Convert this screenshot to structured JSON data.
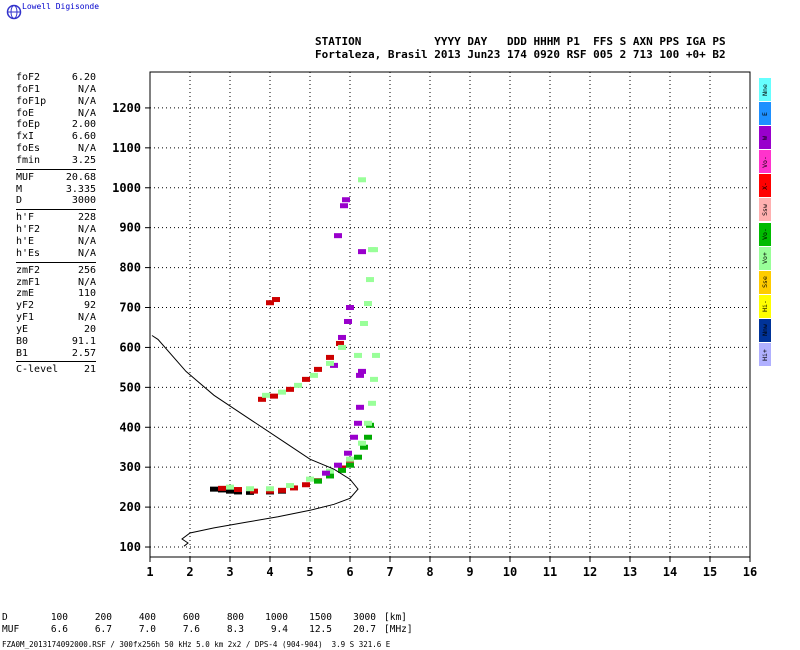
{
  "header": {
    "brand": "Lowell Digisonde",
    "row1": "STATION           YYYY DAY   DDD HHHM P1  FFS S AXN PPS IGA PS",
    "row2": "Fortaleza, Brasil 2013 Jun23 174 0920 RSF 005 2 713 100 +0+ B2"
  },
  "params_groups": [
    [
      {
        "label": "foF2",
        "value": "6.20"
      },
      {
        "label": "foF1",
        "value": "N/A"
      },
      {
        "label": "foF1p",
        "value": "N/A"
      },
      {
        "label": "foE",
        "value": "N/A"
      },
      {
        "label": "foEp",
        "value": "2.00"
      },
      {
        "label": "fxI",
        "value": "6.60"
      },
      {
        "label": "foEs",
        "value": "N/A"
      },
      {
        "label": "fmin",
        "value": "3.25"
      }
    ],
    [
      {
        "label": "MUF",
        "value": "20.68"
      },
      {
        "label": "M",
        "value": "3.335"
      },
      {
        "label": "D",
        "value": "3000"
      }
    ],
    [
      {
        "label": "h'F",
        "value": "228"
      },
      {
        "label": "h'F2",
        "value": "N/A"
      },
      {
        "label": "h'E",
        "value": "N/A"
      },
      {
        "label": "h'Es",
        "value": "N/A"
      }
    ],
    [
      {
        "label": "zmF2",
        "value": "256"
      },
      {
        "label": "zmF1",
        "value": "N/A"
      },
      {
        "label": "zmE",
        "value": "110"
      },
      {
        "label": "yF2",
        "value": "92"
      },
      {
        "label": "yF1",
        "value": "N/A"
      },
      {
        "label": "yE",
        "value": "20"
      },
      {
        "label": "B0",
        "value": "91.1"
      },
      {
        "label": "B1",
        "value": "2.57"
      }
    ],
    [
      {
        "label": "C-level",
        "value": "21"
      }
    ]
  ],
  "muf_table": {
    "row1": [
      "D",
      "100",
      "200",
      "400",
      "600",
      "800",
      "1000",
      "1500",
      "3000",
      "[km]"
    ],
    "row2": [
      "MUF",
      "6.6",
      "6.7",
      "7.0",
      "7.6",
      "8.3",
      "9.4",
      "12.5",
      "20.7",
      "[MHz]"
    ]
  },
  "footer": "FZA0M_2013174092000.RSF / 300fx256h 50 kHz 5.0 km 2x2 / DPS-4 (904-904)  3.9 S 321.6 E",
  "legend": [
    {
      "label": "Nne",
      "color": "#66ffff"
    },
    {
      "label": "E",
      "color": "#1e90ff"
    },
    {
      "label": "W",
      "color": "#9900cc"
    },
    {
      "label": "Vo-",
      "color": "#ff33cc"
    },
    {
      "label": "X-",
      "color": "#ff0000"
    },
    {
      "label": "Ssw",
      "color": "#ffb0b0"
    },
    {
      "label": "Vo-",
      "color": "#00bb00"
    },
    {
      "label": "Vo+",
      "color": "#99ff99"
    },
    {
      "label": "Sse",
      "color": "#ffcc00"
    },
    {
      "label": "Hi-",
      "color": "#ffff00"
    },
    {
      "label": "Nnw",
      "color": "#003399"
    },
    {
      "label": "Hi+",
      "color": "#b0b0ff"
    }
  ],
  "chart_data": {
    "type": "scatter",
    "xlabel": "",
    "ylabel": "",
    "xlim": [
      1,
      16
    ],
    "ylim": [
      75,
      1290
    ],
    "x_ticks": [
      1,
      2,
      3,
      4,
      5,
      6,
      7,
      8,
      9,
      10,
      11,
      12,
      13,
      14,
      15,
      16
    ],
    "y_ticks": [
      100,
      200,
      300,
      400,
      500,
      600,
      700,
      800,
      900,
      1000,
      1100,
      1200
    ],
    "grid": "dotted",
    "series": [
      {
        "color": "#000000",
        "points": [
          [
            2.6,
            245
          ],
          [
            2.8,
            243
          ],
          [
            3.0,
            240
          ],
          [
            3.2,
            238
          ],
          [
            3.5,
            237
          ],
          [
            4.0,
            238
          ],
          [
            4.3,
            240
          ]
        ]
      },
      {
        "color": "#cc0000",
        "points": [
          [
            2.8,
            247
          ],
          [
            3.2,
            244
          ],
          [
            3.6,
            240
          ],
          [
            4.0,
            240
          ],
          [
            4.3,
            242
          ],
          [
            4.6,
            248
          ],
          [
            4.9,
            256
          ],
          [
            5.2,
            266
          ],
          [
            5.5,
            280
          ],
          [
            5.8,
            298
          ],
          [
            6.0,
            318
          ]
        ]
      },
      {
        "color": "#00aa00",
        "points": [
          [
            5.2,
            265
          ],
          [
            5.5,
            278
          ],
          [
            5.8,
            292
          ],
          [
            6.0,
            305
          ],
          [
            6.2,
            325
          ],
          [
            6.35,
            350
          ],
          [
            6.45,
            375
          ],
          [
            6.5,
            405
          ]
        ]
      },
      {
        "color": "#99ff99",
        "points": [
          [
            3.0,
            250
          ],
          [
            3.5,
            246
          ],
          [
            4.0,
            246
          ],
          [
            4.5,
            254
          ],
          [
            5.0,
            270
          ],
          [
            5.5,
            290
          ],
          [
            6.0,
            320
          ],
          [
            6.3,
            360
          ],
          [
            6.45,
            410
          ],
          [
            6.55,
            460
          ],
          [
            6.6,
            520
          ],
          [
            6.65,
            580
          ],
          [
            6.2,
            580
          ],
          [
            6.35,
            660
          ],
          [
            6.45,
            710
          ],
          [
            6.5,
            770
          ],
          [
            6.55,
            845
          ],
          [
            6.6,
            845
          ]
        ]
      },
      {
        "color": "#9900cc",
        "points": [
          [
            5.4,
            285
          ],
          [
            5.7,
            305
          ],
          [
            5.95,
            335
          ],
          [
            6.1,
            375
          ],
          [
            6.2,
            410
          ],
          [
            6.25,
            450
          ],
          [
            6.25,
            530
          ],
          [
            6.3,
            540
          ],
          [
            5.6,
            555
          ],
          [
            5.8,
            625
          ],
          [
            5.95,
            665
          ],
          [
            6.0,
            700
          ],
          [
            5.7,
            880
          ],
          [
            5.85,
            955
          ],
          [
            5.9,
            970
          ],
          [
            6.3,
            840
          ]
        ]
      },
      {
        "color": "#cc0000",
        "points": [
          [
            3.8,
            470
          ],
          [
            4.1,
            478
          ],
          [
            4.5,
            495
          ],
          [
            4.9,
            520
          ],
          [
            5.2,
            545
          ],
          [
            5.5,
            575
          ],
          [
            5.75,
            610
          ],
          [
            4.0,
            712
          ],
          [
            4.15,
            720
          ]
        ]
      },
      {
        "color": "#99ff99",
        "points": [
          [
            3.9,
            480
          ],
          [
            4.3,
            488
          ],
          [
            4.7,
            505
          ],
          [
            5.1,
            530
          ],
          [
            5.5,
            560
          ],
          [
            5.8,
            600
          ],
          [
            6.3,
            1020
          ]
        ]
      }
    ],
    "profile": {
      "color": "#000000",
      "points": [
        [
          1.85,
          102
        ],
        [
          1.95,
          110
        ],
        [
          1.8,
          120
        ],
        [
          2.0,
          135
        ],
        [
          2.6,
          148
        ],
        [
          3.4,
          162
        ],
        [
          4.2,
          176
        ],
        [
          5.0,
          192
        ],
        [
          5.6,
          207
        ],
        [
          6.0,
          222
        ],
        [
          6.2,
          245
        ],
        [
          6.0,
          270
        ],
        [
          5.6,
          295
        ],
        [
          5.0,
          320
        ],
        [
          4.4,
          360
        ],
        [
          3.5,
          420
        ],
        [
          2.6,
          480
        ],
        [
          1.9,
          540
        ],
        [
          1.2,
          620
        ],
        [
          1.05,
          630
        ]
      ]
    }
  }
}
